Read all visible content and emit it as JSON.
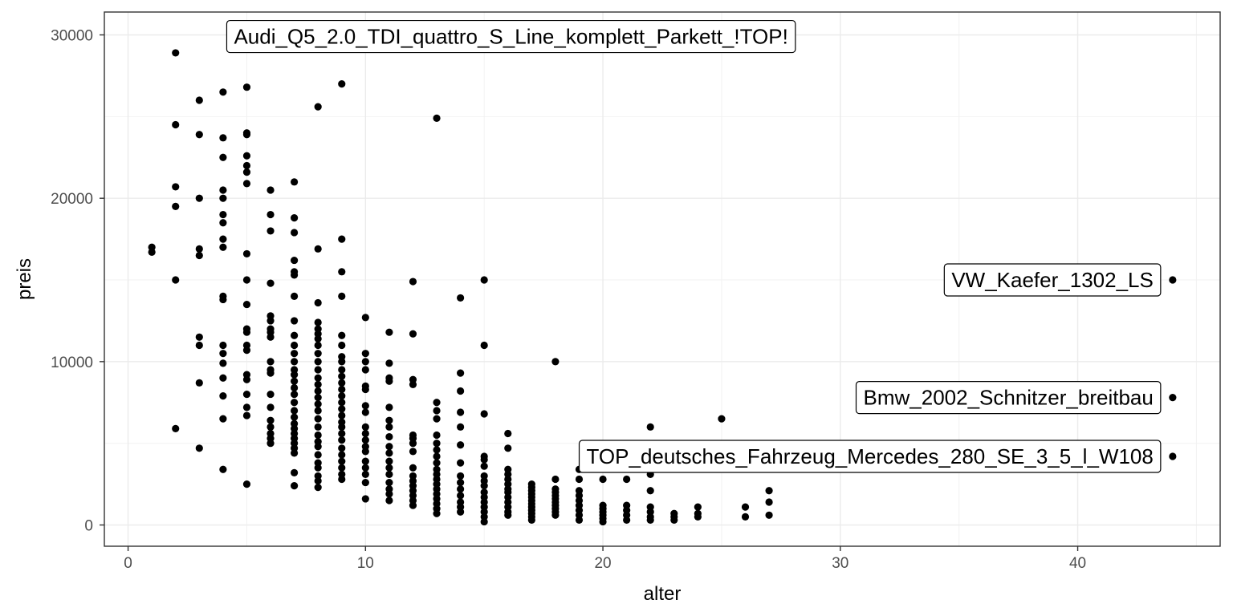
{
  "chart_data": {
    "type": "scatter",
    "title": "",
    "xlabel": "alter",
    "ylabel": "preis",
    "xlim": [
      -1,
      46
    ],
    "ylim": [
      -1300,
      31400
    ],
    "x_ticks": [
      0,
      10,
      20,
      30,
      40
    ],
    "y_ticks": [
      0,
      10000,
      20000,
      30000
    ],
    "grid": true,
    "point_color": "#000000",
    "points": [
      [
        1,
        17000
      ],
      [
        1,
        16700
      ],
      [
        2,
        28900
      ],
      [
        2,
        24500
      ],
      [
        2,
        20700
      ],
      [
        2,
        19500
      ],
      [
        2,
        15000
      ],
      [
        2,
        5900
      ],
      [
        3,
        26000
      ],
      [
        3,
        23900
      ],
      [
        3,
        20000
      ],
      [
        3,
        16900
      ],
      [
        3,
        16500
      ],
      [
        3,
        11500
      ],
      [
        3,
        11000
      ],
      [
        3,
        8700
      ],
      [
        3,
        4700
      ],
      [
        4,
        26500
      ],
      [
        4,
        23700
      ],
      [
        4,
        22500
      ],
      [
        4,
        20500
      ],
      [
        4,
        20000
      ],
      [
        4,
        19000
      ],
      [
        4,
        18500
      ],
      [
        4,
        17500
      ],
      [
        4,
        17000
      ],
      [
        4,
        14000
      ],
      [
        4,
        13800
      ],
      [
        4,
        11000
      ],
      [
        4,
        10500
      ],
      [
        4,
        9900
      ],
      [
        4,
        9000
      ],
      [
        4,
        7900
      ],
      [
        4,
        6500
      ],
      [
        4,
        3400
      ],
      [
        5,
        26800
      ],
      [
        5,
        24000
      ],
      [
        5,
        23900
      ],
      [
        5,
        22600
      ],
      [
        5,
        22000
      ],
      [
        5,
        21600
      ],
      [
        5,
        20900
      ],
      [
        5,
        16600
      ],
      [
        5,
        15000
      ],
      [
        5,
        13500
      ],
      [
        5,
        12000
      ],
      [
        5,
        11800
      ],
      [
        5,
        11000
      ],
      [
        5,
        10700
      ],
      [
        5,
        9200
      ],
      [
        5,
        8900
      ],
      [
        5,
        8000
      ],
      [
        5,
        7200
      ],
      [
        5,
        6700
      ],
      [
        5,
        2500
      ],
      [
        6,
        20500
      ],
      [
        6,
        19000
      ],
      [
        6,
        18000
      ],
      [
        6,
        14800
      ],
      [
        6,
        12800
      ],
      [
        6,
        12500
      ],
      [
        6,
        12000
      ],
      [
        6,
        11800
      ],
      [
        6,
        11500
      ],
      [
        6,
        10000
      ],
      [
        6,
        9500
      ],
      [
        6,
        9300
      ],
      [
        6,
        8000
      ],
      [
        6,
        7200
      ],
      [
        6,
        6400
      ],
      [
        6,
        6000
      ],
      [
        6,
        5600
      ],
      [
        6,
        5300
      ],
      [
        6,
        5000
      ],
      [
        7,
        21000
      ],
      [
        7,
        18800
      ],
      [
        7,
        17900
      ],
      [
        7,
        16200
      ],
      [
        7,
        15500
      ],
      [
        7,
        15300
      ],
      [
        7,
        14000
      ],
      [
        7,
        12500
      ],
      [
        7,
        11600
      ],
      [
        7,
        11000
      ],
      [
        7,
        10500
      ],
      [
        7,
        10000
      ],
      [
        7,
        9500
      ],
      [
        7,
        9200
      ],
      [
        7,
        8800
      ],
      [
        7,
        8400
      ],
      [
        7,
        8000
      ],
      [
        7,
        7500
      ],
      [
        7,
        7000
      ],
      [
        7,
        6600
      ],
      [
        7,
        6200
      ],
      [
        7,
        5900
      ],
      [
        7,
        5600
      ],
      [
        7,
        5300
      ],
      [
        7,
        5000
      ],
      [
        7,
        4700
      ],
      [
        7,
        4400
      ],
      [
        7,
        3200
      ],
      [
        7,
        2400
      ],
      [
        8,
        25600
      ],
      [
        8,
        16900
      ],
      [
        8,
        13600
      ],
      [
        8,
        12400
      ],
      [
        8,
        12000
      ],
      [
        8,
        11700
      ],
      [
        8,
        11400
      ],
      [
        8,
        11000
      ],
      [
        8,
        10500
      ],
      [
        8,
        10000
      ],
      [
        8,
        9500
      ],
      [
        8,
        9000
      ],
      [
        8,
        8600
      ],
      [
        8,
        8200
      ],
      [
        8,
        7800
      ],
      [
        8,
        7400
      ],
      [
        8,
        7000
      ],
      [
        8,
        6500
      ],
      [
        8,
        6000
      ],
      [
        8,
        5500
      ],
      [
        8,
        5100
      ],
      [
        8,
        4800
      ],
      [
        8,
        4300
      ],
      [
        8,
        3800
      ],
      [
        8,
        3500
      ],
      [
        8,
        3000
      ],
      [
        8,
        2700
      ],
      [
        8,
        2300
      ],
      [
        9,
        27000
      ],
      [
        9,
        17500
      ],
      [
        9,
        15500
      ],
      [
        9,
        14000
      ],
      [
        9,
        11600
      ],
      [
        9,
        11000
      ],
      [
        9,
        10300
      ],
      [
        9,
        10000
      ],
      [
        9,
        9500
      ],
      [
        9,
        9100
      ],
      [
        9,
        8700
      ],
      [
        9,
        8300
      ],
      [
        9,
        7900
      ],
      [
        9,
        7500
      ],
      [
        9,
        7100
      ],
      [
        9,
        6700
      ],
      [
        9,
        6300
      ],
      [
        9,
        6000
      ],
      [
        9,
        5600
      ],
      [
        9,
        5200
      ],
      [
        9,
        4700
      ],
      [
        9,
        4300
      ],
      [
        9,
        3900
      ],
      [
        9,
        3500
      ],
      [
        9,
        3100
      ],
      [
        9,
        2800
      ],
      [
        10,
        12700
      ],
      [
        10,
        10500
      ],
      [
        10,
        10000
      ],
      [
        10,
        9500
      ],
      [
        10,
        8500
      ],
      [
        10,
        8300
      ],
      [
        10,
        7300
      ],
      [
        10,
        6900
      ],
      [
        10,
        6000
      ],
      [
        10,
        5600
      ],
      [
        10,
        5200
      ],
      [
        10,
        4800
      ],
      [
        10,
        4500
      ],
      [
        10,
        3900
      ],
      [
        10,
        3500
      ],
      [
        10,
        3100
      ],
      [
        10,
        2600
      ],
      [
        10,
        1600
      ],
      [
        11,
        11800
      ],
      [
        11,
        9900
      ],
      [
        11,
        9000
      ],
      [
        11,
        8800
      ],
      [
        11,
        7200
      ],
      [
        11,
        6400
      ],
      [
        11,
        6000
      ],
      [
        11,
        5400
      ],
      [
        11,
        4800
      ],
      [
        11,
        4400
      ],
      [
        11,
        3900
      ],
      [
        11,
        3500
      ],
      [
        11,
        3100
      ],
      [
        11,
        2600
      ],
      [
        11,
        2200
      ],
      [
        11,
        1900
      ],
      [
        11,
        1500
      ],
      [
        12,
        14900
      ],
      [
        12,
        11700
      ],
      [
        12,
        8900
      ],
      [
        12,
        8600
      ],
      [
        12,
        5500
      ],
      [
        12,
        5300
      ],
      [
        12,
        5000
      ],
      [
        12,
        4500
      ],
      [
        12,
        3500
      ],
      [
        12,
        3000
      ],
      [
        12,
        2700
      ],
      [
        12,
        2400
      ],
      [
        12,
        2100
      ],
      [
        12,
        1800
      ],
      [
        12,
        1500
      ],
      [
        12,
        1200
      ],
      [
        13,
        24900
      ],
      [
        13,
        7500
      ],
      [
        13,
        7000
      ],
      [
        13,
        6500
      ],
      [
        13,
        5500
      ],
      [
        13,
        5000
      ],
      [
        13,
        4600
      ],
      [
        13,
        4200
      ],
      [
        13,
        3800
      ],
      [
        13,
        3400
      ],
      [
        13,
        3100
      ],
      [
        13,
        2800
      ],
      [
        13,
        2500
      ],
      [
        13,
        2200
      ],
      [
        13,
        1900
      ],
      [
        13,
        1600
      ],
      [
        13,
        1300
      ],
      [
        13,
        1000
      ],
      [
        13,
        700
      ],
      [
        14,
        13900
      ],
      [
        14,
        9300
      ],
      [
        14,
        8200
      ],
      [
        14,
        6900
      ],
      [
        14,
        6000
      ],
      [
        14,
        4900
      ],
      [
        14,
        3800
      ],
      [
        14,
        3000
      ],
      [
        14,
        2600
      ],
      [
        14,
        2200
      ],
      [
        14,
        1800
      ],
      [
        14,
        1400
      ],
      [
        14,
        1100
      ],
      [
        14,
        800
      ],
      [
        15,
        15000
      ],
      [
        15,
        11000
      ],
      [
        15,
        6800
      ],
      [
        15,
        4200
      ],
      [
        15,
        4000
      ],
      [
        15,
        3600
      ],
      [
        15,
        3000
      ],
      [
        15,
        2700
      ],
      [
        15,
        2400
      ],
      [
        15,
        2000
      ],
      [
        15,
        1700
      ],
      [
        15,
        1400
      ],
      [
        15,
        1100
      ],
      [
        15,
        800
      ],
      [
        15,
        500
      ],
      [
        15,
        200
      ],
      [
        16,
        5600
      ],
      [
        16,
        4700
      ],
      [
        16,
        3400
      ],
      [
        16,
        3100
      ],
      [
        16,
        2800
      ],
      [
        16,
        2500
      ],
      [
        16,
        2200
      ],
      [
        16,
        2000
      ],
      [
        16,
        1700
      ],
      [
        16,
        1400
      ],
      [
        16,
        1100
      ],
      [
        16,
        800
      ],
      [
        16,
        600
      ],
      [
        17,
        2500
      ],
      [
        17,
        2300
      ],
      [
        17,
        2100
      ],
      [
        17,
        1900
      ],
      [
        17,
        1700
      ],
      [
        17,
        1500
      ],
      [
        17,
        1300
      ],
      [
        17,
        1100
      ],
      [
        17,
        900
      ],
      [
        17,
        700
      ],
      [
        17,
        500
      ],
      [
        17,
        300
      ],
      [
        18,
        10000
      ],
      [
        18,
        2800
      ],
      [
        18,
        2200
      ],
      [
        18,
        2000
      ],
      [
        18,
        1800
      ],
      [
        18,
        1600
      ],
      [
        18,
        1400
      ],
      [
        18,
        1200
      ],
      [
        18,
        1000
      ],
      [
        18,
        800
      ],
      [
        18,
        600
      ],
      [
        19,
        3400
      ],
      [
        19,
        2800
      ],
      [
        19,
        2100
      ],
      [
        19,
        1800
      ],
      [
        19,
        1500
      ],
      [
        19,
        1200
      ],
      [
        19,
        900
      ],
      [
        19,
        600
      ],
      [
        19,
        300
      ],
      [
        20,
        2800
      ],
      [
        20,
        1200
      ],
      [
        20,
        1000
      ],
      [
        20,
        800
      ],
      [
        20,
        600
      ],
      [
        20,
        400
      ],
      [
        20,
        200
      ],
      [
        21,
        2800
      ],
      [
        21,
        1200
      ],
      [
        21,
        900
      ],
      [
        21,
        600
      ],
      [
        21,
        300
      ],
      [
        22,
        6000
      ],
      [
        22,
        3100
      ],
      [
        22,
        2100
      ],
      [
        22,
        1100
      ],
      [
        22,
        800
      ],
      [
        22,
        500
      ],
      [
        22,
        300
      ],
      [
        23,
        700
      ],
      [
        23,
        500
      ],
      [
        23,
        300
      ],
      [
        24,
        1100
      ],
      [
        24,
        700
      ],
      [
        24,
        500
      ],
      [
        25,
        6500
      ],
      [
        26,
        1100
      ],
      [
        26,
        500
      ],
      [
        27,
        2100
      ],
      [
        27,
        1400
      ],
      [
        27,
        600
      ],
      [
        44,
        15000
      ],
      [
        44,
        7800
      ],
      [
        44,
        4200
      ]
    ],
    "annotations": [
      {
        "text": "Audi_Q5_2.0_TDI_quattro_S_Line_komplett_Parkett_!TOP!",
        "x": 5,
        "y": 29900,
        "anchor": "start"
      },
      {
        "text": "VW_Kaefer_1302_LS",
        "x": 44,
        "y": 15000,
        "anchor": "end"
      },
      {
        "text": "Bmw_2002_Schnitzer_breitbau",
        "x": 44,
        "y": 7800,
        "anchor": "end"
      },
      {
        "text": "TOP_deutsches_Fahrzeug_Mercedes_280_SE_3_5_l_W108",
        "x": 44,
        "y": 4200,
        "anchor": "end"
      }
    ]
  }
}
